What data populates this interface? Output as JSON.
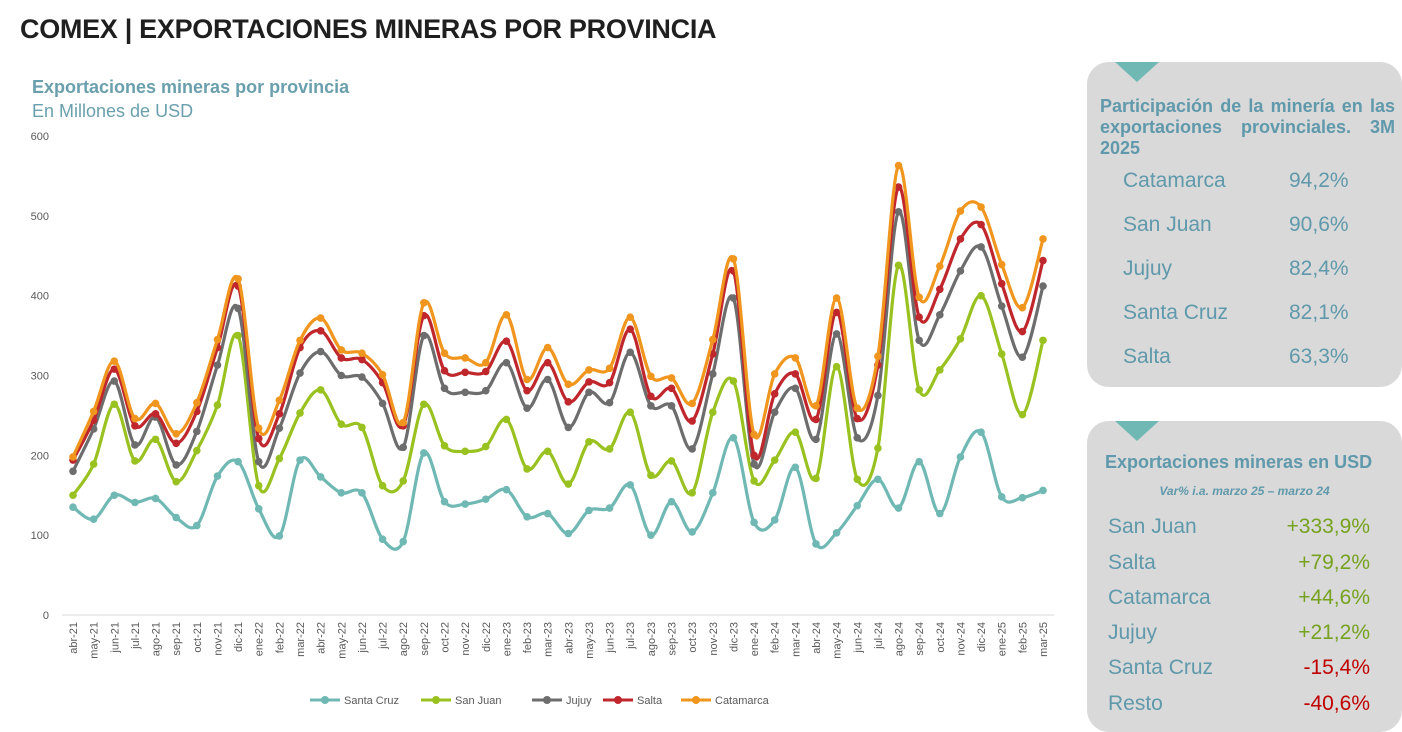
{
  "header": {
    "title": "COMEX | EXPORTACIONES MINERAS POR PROVINCIA"
  },
  "chart_data": {
    "type": "line",
    "title": "Exportaciones mineras por provincia",
    "subtitle": "En Millones de USD",
    "ylim": [
      0,
      600
    ],
    "yticks": [
      0,
      100,
      200,
      300,
      400,
      500,
      600
    ],
    "grid": false,
    "legend_position": "bottom",
    "x": [
      "abr-21",
      "may-21",
      "jun-21",
      "jul-21",
      "ago-21",
      "sep-21",
      "oct-21",
      "nov-21",
      "dic-21",
      "ene-22",
      "feb-22",
      "mar-22",
      "abr-22",
      "may-22",
      "jun-22",
      "jul-22",
      "ago-22",
      "sep-22",
      "oct-22",
      "nov-22",
      "dic-22",
      "ene-23",
      "feb-23",
      "mar-23",
      "abr-23",
      "may-23",
      "jun-23",
      "jul-23",
      "ago-23",
      "sep-23",
      "oct-23",
      "nov-23",
      "dic-23",
      "ene-24",
      "feb-24",
      "mar-24",
      "abr-24",
      "may-24",
      "jun-24",
      "jul-24",
      "ago-24",
      "sep-24",
      "oct-24",
      "nov-24",
      "dic-24",
      "ene-25",
      "feb-25",
      "mar-25"
    ],
    "series": [
      {
        "name": "Santa Cruz",
        "color": "#6fb8b3",
        "values": [
          135,
          120,
          150,
          141,
          146,
          122,
          112,
          174,
          192,
          133,
          99,
          194,
          173,
          153,
          153,
          95,
          92,
          203,
          142,
          139,
          145,
          157,
          123,
          127,
          102,
          131,
          134,
          163,
          100,
          142,
          104,
          153,
          222,
          116,
          119,
          185,
          89,
          103,
          137,
          170,
          134,
          192,
          127,
          198,
          229,
          148,
          147,
          156
        ]
      },
      {
        "name": "San Juan",
        "color": "#99c221",
        "values": [
          150,
          189,
          264,
          193,
          220,
          167,
          206,
          263,
          350,
          162,
          196,
          253,
          282,
          239,
          235,
          162,
          168,
          264,
          212,
          205,
          211,
          245,
          183,
          205,
          164,
          217,
          208,
          254,
          175,
          193,
          153,
          254,
          293,
          168,
          194,
          229,
          171,
          311,
          170,
          209,
          438,
          282,
          307,
          346,
          400,
          327,
          251,
          344
        ]
      },
      {
        "name": "Jujuy",
        "color": "#6d6d6d",
        "values": [
          180,
          233,
          293,
          213,
          248,
          188,
          230,
          313,
          384,
          192,
          234,
          303,
          330,
          300,
          298,
          265,
          210,
          350,
          284,
          279,
          281,
          316,
          259,
          295,
          235,
          279,
          266,
          329,
          262,
          262,
          208,
          302,
          397,
          189,
          254,
          284,
          220,
          352,
          222,
          275,
          505,
          344,
          376,
          431,
          461,
          387,
          323,
          412
        ]
      },
      {
        "name": "Salta",
        "color": "#c0272d",
        "values": [
          194,
          244,
          308,
          237,
          252,
          215,
          255,
          335,
          412,
          221,
          252,
          335,
          356,
          322,
          320,
          291,
          237,
          375,
          306,
          304,
          305,
          343,
          281,
          316,
          267,
          292,
          291,
          358,
          274,
          284,
          243,
          327,
          431,
          200,
          277,
          302,
          245,
          379,
          246,
          313,
          536,
          373,
          408,
          471,
          489,
          415,
          355,
          444
        ]
      },
      {
        "name": "Catamarca",
        "color": "#f0961e",
        "values": [
          198,
          255,
          318,
          246,
          265,
          227,
          266,
          345,
          421,
          234,
          269,
          344,
          372,
          332,
          328,
          301,
          241,
          391,
          328,
          322,
          316,
          376,
          295,
          335,
          289,
          307,
          309,
          373,
          299,
          297,
          265,
          345,
          446,
          226,
          302,
          322,
          262,
          397,
          259,
          324,
          563,
          398,
          437,
          506,
          511,
          439,
          385,
          471
        ]
      }
    ]
  },
  "panel_share": {
    "title": "Participación de la minería en las exportaciones provinciales. 3M 2025",
    "rows": [
      {
        "province": "Catamarca",
        "value": "94,2%"
      },
      {
        "province": "San Juan",
        "value": "90,6%"
      },
      {
        "province": "Jujuy",
        "value": "82,4%"
      },
      {
        "province": "Santa Cruz",
        "value": "82,1%"
      },
      {
        "province": "Salta",
        "value": "63,3%"
      }
    ]
  },
  "panel_var": {
    "title": "Exportaciones mineras en USD",
    "subtitle": "Var% i.a. marzo 25 – marzo 24",
    "positive_color": "#76a21f",
    "negative_color": "#c00000",
    "rows": [
      {
        "province": "San Juan",
        "value": "+333,9%",
        "sign": "pos"
      },
      {
        "province": "Salta",
        "value": "+79,2%",
        "sign": "pos"
      },
      {
        "province": "Catamarca",
        "value": "+44,6%",
        "sign": "pos"
      },
      {
        "province": "Jujuy",
        "value": "+21,2%",
        "sign": "pos"
      },
      {
        "province": "Santa Cruz",
        "value": "-15,4%",
        "sign": "neg"
      },
      {
        "province": "Resto",
        "value": "-40,6%",
        "sign": "neg"
      }
    ]
  }
}
